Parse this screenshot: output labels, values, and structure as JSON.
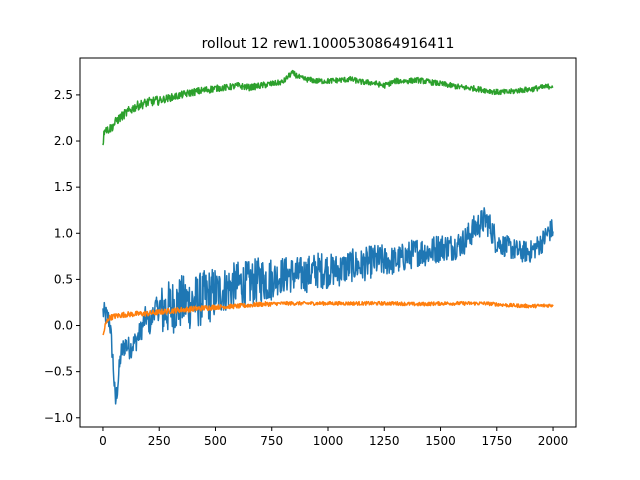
{
  "chart_data": {
    "type": "line",
    "title": "rollout 12 rew1.1000530864916411",
    "xlabel": "",
    "ylabel": "",
    "xlim": [
      -102,
      2102
    ],
    "ylim": [
      -1.1,
      2.9
    ],
    "xticks": [
      0,
      250,
      500,
      750,
      1000,
      1250,
      1500,
      1750,
      2000
    ],
    "yticks": [
      -1.0,
      -0.5,
      0.0,
      0.5,
      1.0,
      1.5,
      2.0,
      2.5
    ],
    "grid": false,
    "legend": "none",
    "series": [
      {
        "color": "#1f77b4",
        "anchors": [
          [
            0,
            0.15
          ],
          [
            15,
            0.1
          ],
          [
            30,
            0.05
          ],
          [
            45,
            -0.4
          ],
          [
            55,
            -0.85
          ],
          [
            65,
            -0.65
          ],
          [
            80,
            -0.3
          ],
          [
            100,
            -0.2
          ],
          [
            120,
            -0.25
          ],
          [
            150,
            -0.15
          ],
          [
            170,
            -0.05
          ],
          [
            190,
            0.1
          ],
          [
            210,
            0.0
          ],
          [
            230,
            0.2
          ],
          [
            260,
            0.15
          ],
          [
            300,
            0.2
          ],
          [
            350,
            0.25
          ],
          [
            400,
            0.25
          ],
          [
            450,
            0.3
          ],
          [
            500,
            0.35
          ],
          [
            550,
            0.4
          ],
          [
            600,
            0.45
          ],
          [
            650,
            0.45
          ],
          [
            700,
            0.5
          ],
          [
            750,
            0.5
          ],
          [
            800,
            0.55
          ],
          [
            850,
            0.55
          ],
          [
            900,
            0.55
          ],
          [
            950,
            0.6
          ],
          [
            1000,
            0.6
          ],
          [
            1050,
            0.6
          ],
          [
            1100,
            0.65
          ],
          [
            1150,
            0.65
          ],
          [
            1200,
            0.7
          ],
          [
            1250,
            0.7
          ],
          [
            1300,
            0.7
          ],
          [
            1350,
            0.75
          ],
          [
            1400,
            0.8
          ],
          [
            1450,
            0.8
          ],
          [
            1500,
            0.85
          ],
          [
            1550,
            0.85
          ],
          [
            1600,
            0.9
          ],
          [
            1650,
            1.05
          ],
          [
            1700,
            1.15
          ],
          [
            1725,
            1.05
          ],
          [
            1750,
            0.9
          ],
          [
            1800,
            0.85
          ],
          [
            1850,
            0.8
          ],
          [
            1900,
            0.8
          ],
          [
            1950,
            0.9
          ],
          [
            1975,
            1.0
          ],
          [
            2000,
            1.05
          ]
        ],
        "noise": [
          0.12,
          0.3,
          0.25,
          0.2,
          0.18,
          0.16,
          0.15,
          0.12
        ]
      },
      {
        "color": "#ff7f0e",
        "anchors": [
          [
            0,
            -0.12
          ],
          [
            10,
            0.0
          ],
          [
            25,
            0.08
          ],
          [
            50,
            0.1
          ],
          [
            100,
            0.12
          ],
          [
            200,
            0.13
          ],
          [
            300,
            0.16
          ],
          [
            400,
            0.18
          ],
          [
            500,
            0.2
          ],
          [
            600,
            0.21
          ],
          [
            700,
            0.23
          ],
          [
            800,
            0.24
          ],
          [
            900,
            0.24
          ],
          [
            1000,
            0.24
          ],
          [
            1100,
            0.24
          ],
          [
            1200,
            0.24
          ],
          [
            1300,
            0.24
          ],
          [
            1400,
            0.23
          ],
          [
            1500,
            0.24
          ],
          [
            1600,
            0.24
          ],
          [
            1700,
            0.24
          ],
          [
            1800,
            0.22
          ],
          [
            1900,
            0.21
          ],
          [
            2000,
            0.22
          ]
        ],
        "noise": [
          0.03,
          0.03,
          0.025,
          0.02,
          0.02,
          0.02,
          0.02,
          0.02
        ]
      },
      {
        "color": "#2ca02c",
        "anchors": [
          [
            0,
            1.98
          ],
          [
            8,
            2.15
          ],
          [
            20,
            2.12
          ],
          [
            40,
            2.15
          ],
          [
            60,
            2.22
          ],
          [
            100,
            2.3
          ],
          [
            150,
            2.38
          ],
          [
            200,
            2.42
          ],
          [
            250,
            2.44
          ],
          [
            300,
            2.47
          ],
          [
            350,
            2.5
          ],
          [
            400,
            2.53
          ],
          [
            450,
            2.55
          ],
          [
            500,
            2.57
          ],
          [
            550,
            2.58
          ],
          [
            600,
            2.6
          ],
          [
            650,
            2.58
          ],
          [
            700,
            2.6
          ],
          [
            750,
            2.62
          ],
          [
            800,
            2.64
          ],
          [
            840,
            2.74
          ],
          [
            880,
            2.68
          ],
          [
            950,
            2.65
          ],
          [
            1000,
            2.65
          ],
          [
            1050,
            2.66
          ],
          [
            1100,
            2.67
          ],
          [
            1150,
            2.64
          ],
          [
            1200,
            2.63
          ],
          [
            1250,
            2.6
          ],
          [
            1300,
            2.65
          ],
          [
            1350,
            2.65
          ],
          [
            1400,
            2.66
          ],
          [
            1450,
            2.64
          ],
          [
            1500,
            2.62
          ],
          [
            1550,
            2.6
          ],
          [
            1600,
            2.58
          ],
          [
            1650,
            2.57
          ],
          [
            1700,
            2.55
          ],
          [
            1750,
            2.53
          ],
          [
            1800,
            2.53
          ],
          [
            1850,
            2.55
          ],
          [
            1900,
            2.56
          ],
          [
            1950,
            2.58
          ],
          [
            2000,
            2.6
          ]
        ],
        "noise": [
          0.05,
          0.04,
          0.035,
          0.03,
          0.03,
          0.03,
          0.03,
          0.03
        ]
      }
    ]
  }
}
